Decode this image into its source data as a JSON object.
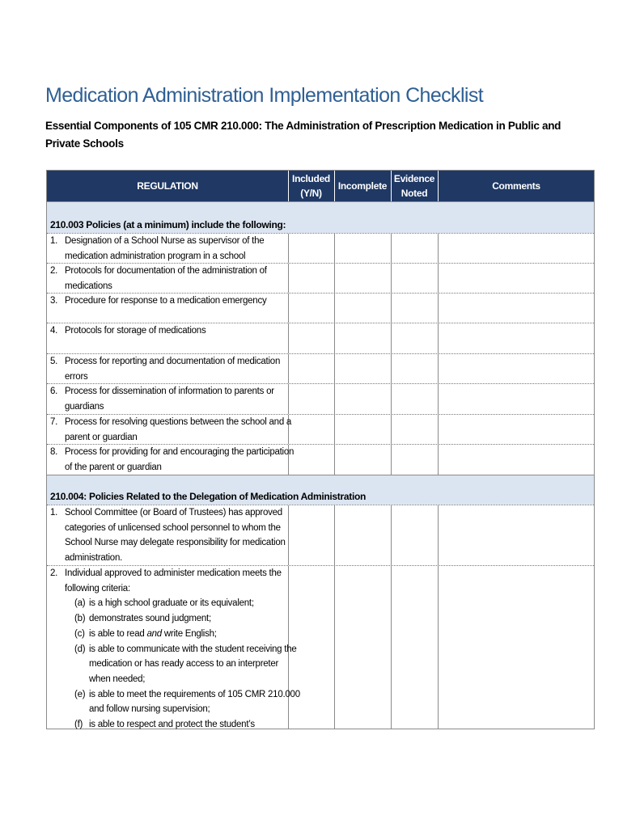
{
  "title": "Medication Administration Implementation Checklist",
  "subtitle": "Essential Components of 105 CMR 210.000: The Administration of Prescription Medication in Public and Private Schools",
  "table": {
    "headers": [
      "REGULATION",
      "Included (Y/N)",
      "Incomplete",
      "Evidence Noted",
      "Comments"
    ],
    "sections": [
      {
        "heading": "210.003 Policies (at a minimum) include the following:",
        "items": [
          {
            "number": "1.",
            "lines": [
              "Designation of a School Nurse as supervisor of the",
              "medication administration program in a school"
            ]
          },
          {
            "number": "2.",
            "lines": [
              "Protocols for documentation of the administration of",
              "medications"
            ]
          },
          {
            "number": "3.",
            "lines": [
              "Procedure for response to a medication emergency"
            ]
          },
          {
            "number": "4.",
            "lines": [
              "Protocols for storage of medications"
            ]
          },
          {
            "number": "5.",
            "lines": [
              "Process for reporting and documentation of medication",
              "errors"
            ]
          },
          {
            "number": "6.",
            "lines": [
              "Process for dissemination of information to parents or",
              "guardians"
            ]
          },
          {
            "number": "7.",
            "lines": [
              "Process for resolving questions between the school and a",
              "parent or guardian"
            ]
          },
          {
            "number": "8.",
            "lines": [
              "Process for providing for and encouraging the participation",
              "of the parent or guardian"
            ]
          }
        ]
      },
      {
        "heading": "210.004: Policies Related to the Delegation of Medication Administration",
        "items": [
          {
            "number": "1.",
            "lines": [
              "School Committee (or Board of Trustees) has approved",
              "categories of unlicensed school personnel to whom the",
              "School Nurse may delegate responsibility for medication",
              "administration."
            ]
          },
          {
            "number": "2.",
            "lines": [
              "Individual approved to administer medication meets the",
              "following criteria:"
            ],
            "subitems": [
              {
                "label": "(a)",
                "lines": [
                  "is a high school graduate or its equivalent;"
                ]
              },
              {
                "label": "(b)",
                "lines": [
                  "demonstrates sound judgment;"
                ]
              },
              {
                "label": "(c)",
                "lines": [
                  {
                    "before": "is able to read ",
                    "emphasis": "and",
                    "after": " write English;"
                  }
                ]
              },
              {
                "label": "(d)",
                "lines": [
                  "is able to communicate with the student receiving the",
                  "medication or has ready access to an interpreter",
                  "when needed;"
                ]
              },
              {
                "label": "(e)",
                "lines": [
                  "is able to meet the requirements of 105 CMR 210.000",
                  "and follow nursing supervision;"
                ]
              },
              {
                "label": "(f)",
                "lines": [
                  "is able to respect and protect the student’s"
                ]
              }
            ]
          }
        ]
      }
    ]
  }
}
